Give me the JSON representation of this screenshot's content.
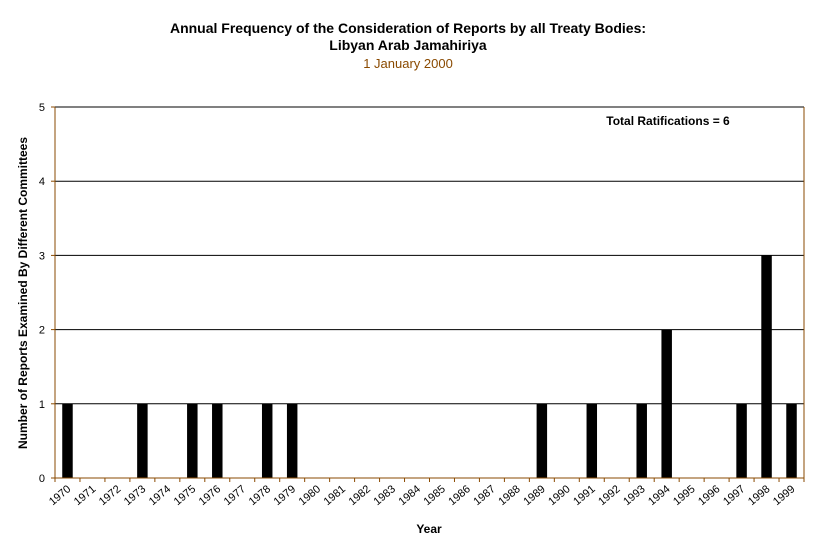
{
  "chart_data": {
    "type": "bar",
    "title_line1": "Annual Frequency of the Consideration of Reports by all Treaty Bodies:",
    "title_line2": "Libyan Arab Jamahiriya",
    "subtitle": "1 January 2000",
    "xlabel": "Year",
    "ylabel": "Number of Reports Examined By Different Committees",
    "annotation": "Total Ratifications = 6",
    "ylim": [
      0,
      5
    ],
    "yticks": [
      "0",
      "1",
      "2",
      "3",
      "4",
      "5"
    ],
    "categories": [
      "1970",
      "1971",
      "1972",
      "1973",
      "1974",
      "1975",
      "1976",
      "1977",
      "1978",
      "1979",
      "1980",
      "1981",
      "1982",
      "1983",
      "1984",
      "1985",
      "1986",
      "1987",
      "1988",
      "1989",
      "1990",
      "1991",
      "1992",
      "1993",
      "1994",
      "1995",
      "1996",
      "1997",
      "1998",
      "1999"
    ],
    "values": [
      1,
      0,
      0,
      1,
      0,
      1,
      1,
      0,
      1,
      1,
      0,
      0,
      0,
      0,
      0,
      0,
      0,
      0,
      0,
      1,
      0,
      1,
      0,
      1,
      2,
      0,
      0,
      1,
      3,
      1
    ],
    "colors": {
      "bar": "#000000",
      "axis": "#8a4a00",
      "grid": "#000000"
    },
    "grid": true,
    "legend": "none"
  }
}
